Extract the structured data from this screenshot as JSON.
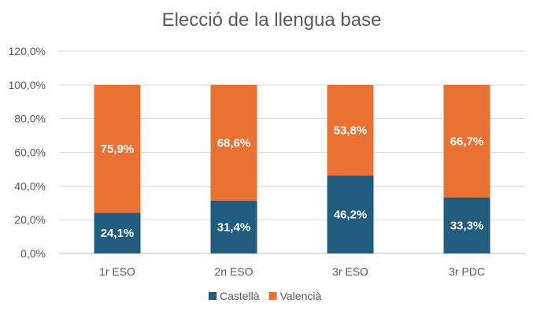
{
  "chart_data": {
    "type": "bar",
    "stacked": true,
    "title": "Elecció de la llengua base",
    "categories": [
      "1r ESO",
      "2n ESO",
      "3r ESO",
      "3r PDC"
    ],
    "series": [
      {
        "name": "Castellà",
        "values": [
          24.1,
          31.4,
          46.2,
          33.3
        ],
        "labels": [
          "24,1%",
          "31,4%",
          "46,2%",
          "33,3%"
        ],
        "color": "#1f5c7e"
      },
      {
        "name": "Valencià",
        "values": [
          75.9,
          68.6,
          53.8,
          66.7
        ],
        "labels": [
          "75,9%",
          "68,6%",
          "53,8%",
          "66,7%"
        ],
        "color": "#e97132"
      }
    ],
    "yticks": [
      "0,0%",
      "20,0%",
      "40,0%",
      "60,0%",
      "80,0%",
      "100,0%",
      "120,0%"
    ],
    "ylim": [
      0,
      120
    ],
    "grid": true,
    "legend": "bottom"
  }
}
